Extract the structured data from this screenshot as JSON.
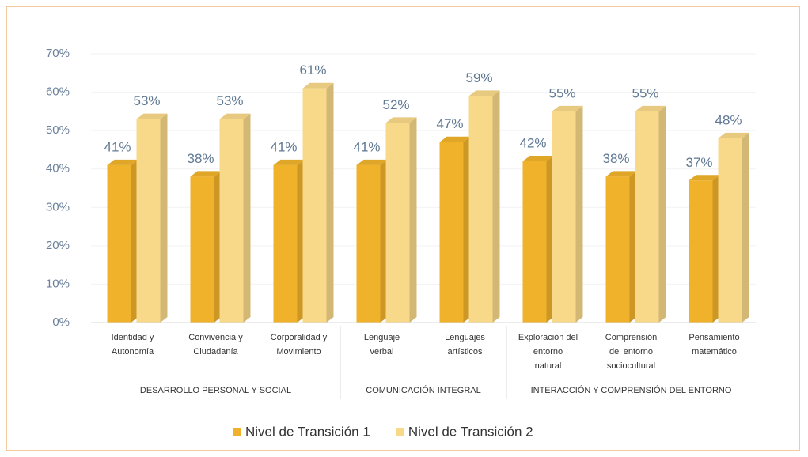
{
  "chart_data": {
    "type": "bar3d",
    "groups": [
      {
        "name": "DESARROLLO PERSONAL Y SOCIAL",
        "categories": [
          "Identidad y\nAutonomía",
          "Convivencia y\nCiudadanía",
          "Corporalidad y\nMovimiento"
        ]
      },
      {
        "name": "COMUNICACIÓN INTEGRAL",
        "categories": [
          "Lenguaje\nverbal",
          "Lenguajes\nartísticos"
        ]
      },
      {
        "name": "INTERACCIÓN Y COMPRENSIÓN DEL ENTORNO",
        "categories": [
          "Exploración del\nentorno\nnatural",
          "Comprensión\ndel entorno\nsociocultural",
          "Pensamiento\nmatemático"
        ]
      }
    ],
    "series": [
      {
        "name": "Nivel de Transición 1",
        "color": "#f0b22a",
        "values": [
          41,
          38,
          41,
          41,
          47,
          42,
          38,
          37
        ],
        "value_labels": [
          "41%",
          "38%",
          "41%",
          "41%",
          "47%",
          "42%",
          "38%",
          "37%"
        ]
      },
      {
        "name": "Nivel de Transición 2",
        "color": "#f8d98a",
        "values": [
          53,
          53,
          61,
          52,
          59,
          55,
          55,
          48
        ],
        "value_labels": [
          "53%",
          "53%",
          "61%",
          "52%",
          "59%",
          "55%",
          "55%",
          "48%"
        ]
      }
    ],
    "ylim": [
      0,
      70
    ],
    "yticks": [
      {
        "value": 0,
        "label": "0%"
      },
      {
        "value": 10,
        "label": "10%"
      },
      {
        "value": 20,
        "label": "20%"
      },
      {
        "value": 30,
        "label": "30%"
      },
      {
        "value": 40,
        "label": "40%"
      },
      {
        "value": 50,
        "label": "50%"
      },
      {
        "value": 60,
        "label": "60%"
      },
      {
        "value": 70,
        "label": "70%"
      }
    ],
    "legend": "bottom"
  }
}
